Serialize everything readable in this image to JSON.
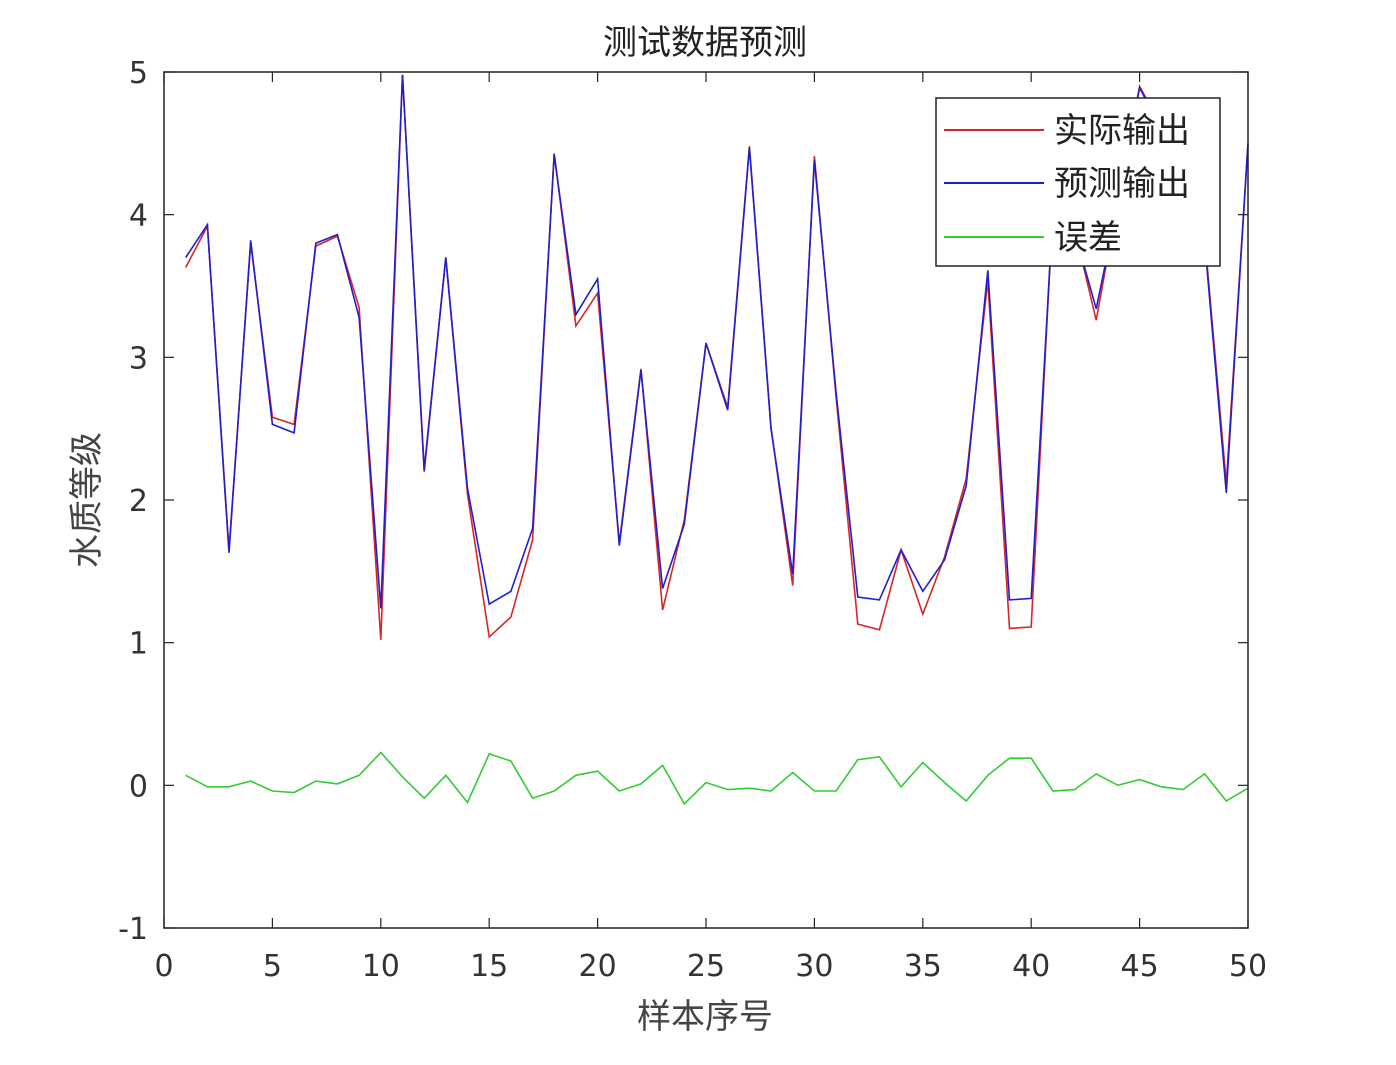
{
  "chart_data": {
    "type": "line",
    "title": "测试数据预测",
    "xlabel": "样本序号",
    "ylabel": "水质等级",
    "xlim": [
      0,
      50
    ],
    "ylim": [
      -1,
      5
    ],
    "xticks": [
      0,
      5,
      10,
      15,
      20,
      25,
      30,
      35,
      40,
      45,
      50
    ],
    "yticks": [
      -1,
      0,
      1,
      2,
      3,
      4,
      5
    ],
    "grid": false,
    "legend_position": "top-right",
    "x": [
      1,
      2,
      3,
      4,
      5,
      6,
      7,
      8,
      9,
      10,
      11,
      12,
      13,
      14,
      15,
      16,
      17,
      18,
      19,
      20,
      21,
      22,
      23,
      24,
      25,
      26,
      27,
      28,
      29,
      30,
      31,
      32,
      33,
      34,
      35,
      36,
      37,
      38,
      39,
      40,
      41,
      42,
      43,
      44,
      45,
      46,
      47,
      48,
      49,
      50
    ],
    "series": [
      {
        "name": "实际输出",
        "color": "#d62728",
        "values": [
          3.63,
          3.92,
          1.65,
          3.8,
          2.58,
          2.53,
          3.78,
          3.85,
          3.35,
          1.02,
          4.98,
          2.22,
          3.7,
          2.04,
          1.04,
          1.18,
          1.72,
          4.43,
          3.22,
          3.45,
          1.7,
          2.92,
          1.23,
          1.86,
          3.1,
          2.65,
          4.48,
          2.51,
          1.4,
          4.41,
          2.72,
          1.13,
          1.09,
          1.65,
          1.2,
          1.6,
          2.15,
          3.54,
          1.1,
          1.11,
          4.05,
          3.9,
          3.26,
          4.1,
          4.9,
          4.62,
          3.92,
          3.85,
          2.12,
          4.5
        ]
      },
      {
        "name": "预测输出",
        "color": "#1f1fcf",
        "values": [
          3.7,
          3.93,
          1.63,
          3.82,
          2.53,
          2.47,
          3.8,
          3.86,
          3.28,
          1.24,
          4.98,
          2.2,
          3.7,
          2.08,
          1.27,
          1.36,
          1.8,
          4.42,
          3.3,
          3.55,
          1.68,
          2.91,
          1.38,
          1.83,
          3.1,
          2.63,
          4.47,
          2.5,
          1.48,
          4.38,
          2.75,
          1.32,
          1.3,
          1.65,
          1.36,
          1.58,
          2.1,
          3.61,
          1.3,
          1.31,
          4.02,
          3.88,
          3.34,
          4.08,
          4.89,
          4.6,
          3.9,
          3.82,
          2.05,
          4.5
        ]
      },
      {
        "name": "误差",
        "color": "#33cc33",
        "values": [
          0.07,
          -0.01,
          -0.01,
          0.03,
          -0.04,
          -0.05,
          0.03,
          0.01,
          0.07,
          0.23,
          0.06,
          -0.09,
          0.07,
          -0.12,
          0.22,
          0.17,
          -0.09,
          -0.04,
          0.07,
          0.1,
          -0.04,
          0.01,
          0.14,
          -0.13,
          0.02,
          -0.03,
          -0.02,
          -0.04,
          0.09,
          -0.04,
          -0.04,
          0.18,
          0.2,
          -0.01,
          0.16,
          0.02,
          -0.11,
          0.07,
          0.19,
          0.19,
          -0.04,
          -0.03,
          0.08,
          0.0,
          0.04,
          -0.01,
          -0.03,
          0.08,
          -0.11,
          -0.02
        ]
      }
    ]
  }
}
